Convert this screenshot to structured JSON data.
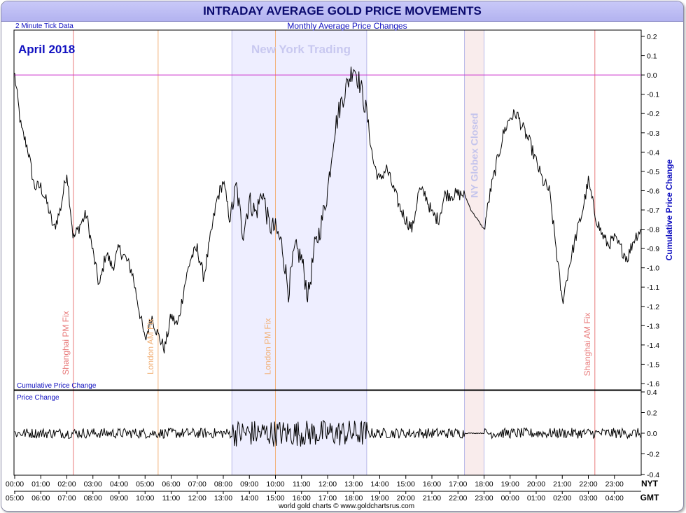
{
  "title": "INTRADAY AVERAGE GOLD PRICE MOVEMENTS",
  "subtitle": "Monthly Average Price Changes",
  "tick_note": "2 Minute Tick Data",
  "month_label": "April 2018",
  "footer": "world gold charts © www.goldchartsrus.com",
  "colors": {
    "title_text": "#0a0a6e",
    "blue_text": "#1010c0",
    "ny_shade": "#eeeeff",
    "ny_text": "#c8c8f0",
    "globex_shade": "#f9ecec",
    "globex_text": "#c4c4ec",
    "shanghai": "#e87a7a",
    "london": "#f2b27a",
    "zero_line": "#cc33cc",
    "series": "#000000"
  },
  "chart_data": [
    {
      "type": "line",
      "name": "cumulative",
      "ylabel": "Cumulative Price Change",
      "inner_label": "Cumulative Price Change",
      "ylim": [
        -1.6,
        0.2
      ],
      "yticks": [
        "0.2",
        "0.1",
        "0.0",
        "-0.1",
        "-0.2",
        "-0.3",
        "-0.4",
        "-0.5",
        "-0.6",
        "-0.7",
        "-0.8",
        "-0.9",
        "-1.0",
        "-1.1",
        "-1.2",
        "-1.3",
        "-1.4",
        "-1.5",
        "-1.6"
      ],
      "xlim_hours_nyt": [
        0,
        24
      ],
      "x_ticks_nyt": [
        "00:00",
        "01:00",
        "02:00",
        "03:00",
        "04:00",
        "05:00",
        "06:00",
        "07:00",
        "08:00",
        "09:00",
        "10:00",
        "11:00",
        "12:00",
        "13:00",
        "14:00",
        "15:00",
        "16:00",
        "17:00",
        "18:00",
        "19:00",
        "20:00",
        "21:00",
        "22:00",
        "23:00"
      ],
      "x_ticks_gmt": [
        "05:00",
        "06:00",
        "07:00",
        "08:00",
        "09:00",
        "10:00",
        "11:00",
        "12:00",
        "13:00",
        "14:00",
        "15:00",
        "16:00",
        "17:00",
        "18:00",
        "19:00",
        "20:00",
        "21:00",
        "22:00",
        "23:00",
        "00:00",
        "01:00",
        "02:00",
        "03:00",
        "04:00"
      ],
      "axis_tz_nyt": "NYT",
      "axis_tz_gmt": "GMT",
      "series_x_nyt": [
        0.0,
        0.25,
        0.5,
        0.75,
        1.0,
        1.25,
        1.5,
        1.75,
        2.0,
        2.25,
        2.5,
        2.75,
        3.0,
        3.25,
        3.5,
        3.75,
        4.0,
        4.25,
        4.5,
        4.75,
        5.0,
        5.25,
        5.5,
        5.75,
        6.0,
        6.25,
        6.5,
        6.75,
        7.0,
        7.25,
        7.5,
        7.75,
        8.0,
        8.25,
        8.5,
        8.75,
        9.0,
        9.25,
        9.5,
        9.75,
        10.0,
        10.25,
        10.5,
        10.75,
        11.0,
        11.25,
        11.5,
        11.75,
        12.0,
        12.25,
        12.5,
        12.75,
        13.0,
        13.25,
        13.5,
        13.75,
        14.0,
        14.25,
        14.5,
        14.75,
        15.0,
        15.25,
        15.5,
        15.75,
        16.0,
        16.25,
        16.5,
        16.75,
        17.0,
        17.25,
        17.5,
        17.75,
        18.0,
        18.25,
        18.5,
        18.75,
        19.0,
        19.25,
        19.5,
        19.75,
        20.0,
        20.25,
        20.5,
        20.75,
        21.0,
        21.25,
        21.5,
        21.75,
        22.0,
        22.25,
        22.5,
        22.75,
        23.0,
        23.25,
        23.5,
        23.75,
        24.0
      ],
      "series_y": [
        0.0,
        -0.28,
        -0.38,
        -0.58,
        -0.58,
        -0.67,
        -0.8,
        -0.7,
        -0.5,
        -0.85,
        -0.78,
        -0.72,
        -0.92,
        -1.1,
        -0.92,
        -1.0,
        -0.9,
        -0.95,
        -1.02,
        -1.2,
        -1.38,
        -1.25,
        -1.35,
        -1.42,
        -1.25,
        -1.3,
        -1.1,
        -0.95,
        -0.9,
        -1.05,
        -0.85,
        -0.65,
        -0.55,
        -0.75,
        -0.58,
        -0.82,
        -0.65,
        -0.72,
        -0.6,
        -0.78,
        -0.8,
        -0.88,
        -1.12,
        -0.9,
        -0.95,
        -1.15,
        -0.9,
        -0.78,
        -0.6,
        -0.3,
        -0.15,
        -0.05,
        0.05,
        -0.05,
        -0.2,
        -0.45,
        -0.55,
        -0.48,
        -0.58,
        -0.68,
        -0.75,
        -0.8,
        -0.6,
        -0.62,
        -0.72,
        -0.75,
        -0.62,
        -0.62,
        -0.62,
        -0.62,
        -0.7,
        -0.75,
        -0.8,
        -0.6,
        -0.45,
        -0.3,
        -0.22,
        -0.2,
        -0.28,
        -0.35,
        -0.45,
        -0.55,
        -0.6,
        -0.88,
        -1.18,
        -1.0,
        -0.85,
        -0.72,
        -0.55,
        -0.72,
        -0.82,
        -0.88,
        -0.85,
        -0.9,
        -0.95,
        -0.85,
        -0.8
      ],
      "annotations": [
        {
          "label": "New York Trading",
          "type": "region",
          "from_nyt": 8.33,
          "to_nyt": 13.5
        },
        {
          "label": "NY Globex Closed",
          "type": "region",
          "from_nyt": 17.25,
          "to_nyt": 18.0
        },
        {
          "label": "Shanghai PM Fix",
          "type": "vline",
          "at_nyt": 2.25
        },
        {
          "label": "London AM Fix",
          "type": "vline",
          "at_nyt": 5.5
        },
        {
          "label": "London PM Fix",
          "type": "vline",
          "at_nyt": 10.0
        },
        {
          "label": "Shanghai AM Fix",
          "type": "vline",
          "at_nyt": 22.25
        }
      ]
    },
    {
      "type": "line",
      "name": "price-change",
      "inner_label": "Price Change",
      "ylim": [
        -0.4,
        0.4
      ],
      "yticks": [
        "0.4",
        "0.2",
        "0.0",
        "-0.2",
        "-0.4"
      ],
      "typical_amplitude": 0.05,
      "high_volatility_nyt": [
        8.33,
        13.5
      ],
      "high_volatility_amplitude": 0.13,
      "flat_nyt": [
        17.25,
        18.0
      ]
    }
  ]
}
